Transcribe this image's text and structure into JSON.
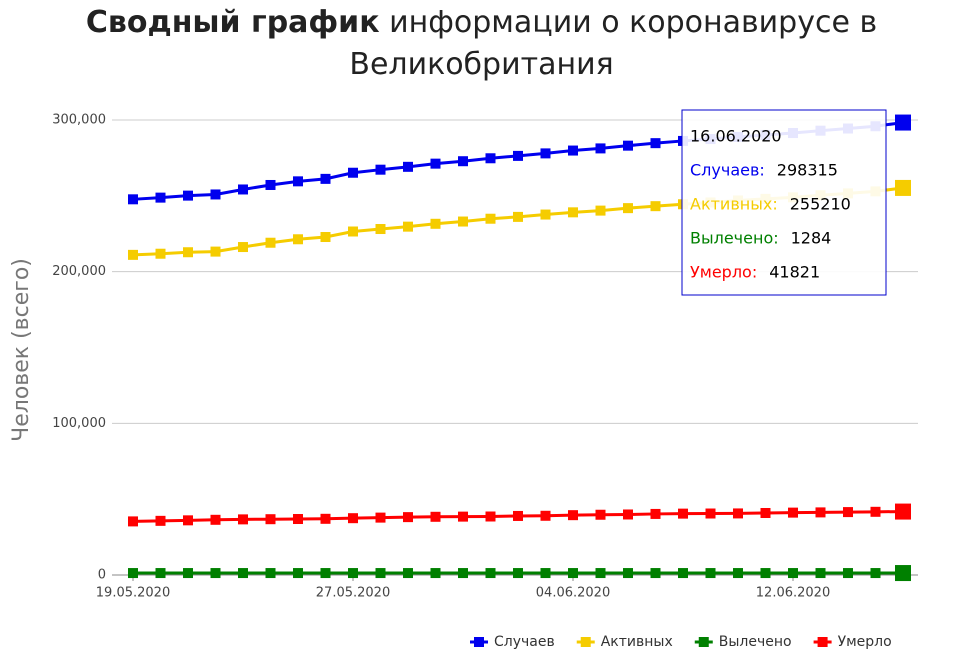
{
  "chart_data": {
    "type": "line",
    "title": {
      "bold": "Сводный график",
      "text": "информации о коронавирусе в Великобритания"
    },
    "y_label": "Человек (всего)",
    "categories": [
      "19.05.2020",
      null,
      null,
      null,
      null,
      null,
      null,
      null,
      "27.05.2020",
      null,
      null,
      null,
      null,
      null,
      null,
      null,
      "04.06.2020",
      null,
      null,
      null,
      null,
      null,
      null,
      null,
      "12.06.2020",
      null,
      null,
      null,
      null
    ],
    "series": [
      {
        "name": "Случаев",
        "color": "#0000ee",
        "values": [
          247706,
          248818,
          250138,
          250908,
          254195,
          257154,
          259559,
          261184,
          265227,
          267240,
          269127,
          271222,
          272826,
          274762,
          276332,
          277985,
          279856,
          281270,
          283079,
          284734,
          286194,
          287452,
          288827,
          290143,
          291409,
          292950,
          294375,
          295889,
          298315
        ]
      },
      {
        "name": "Активных",
        "color": "#f5cc00",
        "values": [
          211081,
          211830,
          212812,
          213231,
          216236,
          219077,
          221361,
          222852,
          226483,
          228119,
          229682,
          231562,
          233053,
          234907,
          236118,
          237656,
          239120,
          240258,
          241891,
          243189,
          244445,
          245626,
          246946,
          247976,
          248997,
          250387,
          251610,
          252943,
          255210
        ]
      },
      {
        "name": "Вылечено",
        "color": "#008000",
        "values": [
          1284,
          1284,
          1284,
          1284,
          1284,
          1284,
          1284,
          1284,
          1284,
          1284,
          1284,
          1284,
          1284,
          1284,
          1284,
          1284,
          1284,
          1284,
          1284,
          1284,
          1284,
          1284,
          1284,
          1284,
          1284,
          1284,
          1284,
          1284,
          1284
        ]
      },
      {
        "name": "Умерло",
        "color": "#ff0000",
        "values": [
          35341,
          35704,
          36042,
          36393,
          36675,
          36793,
          36914,
          37048,
          37460,
          37837,
          38161,
          38376,
          38489,
          38571,
          38930,
          39045,
          39452,
          39728,
          39904,
          40261,
          40465,
          40542,
          40597,
          40883,
          41128,
          41279,
          41481,
          41662,
          41821
        ]
      }
    ],
    "ylim": [
      0,
      300000
    ],
    "yticks": [
      0,
      {
        "value": 100000,
        "label": "100,000"
      },
      {
        "value": 200000,
        "label": "200,000"
      },
      {
        "value": 300000,
        "label": "300,000"
      }
    ],
    "grid": true,
    "legend": "bottom-right",
    "tooltip": {
      "title": "16.06.2020",
      "rows": [
        {
          "label": "Случаев:",
          "value": 298315
        },
        {
          "label": "Активных:",
          "value": 255210
        },
        {
          "label": "Вылечено:",
          "value": 1284
        },
        {
          "label": "Умерло:",
          "value": 41821
        }
      ]
    }
  }
}
